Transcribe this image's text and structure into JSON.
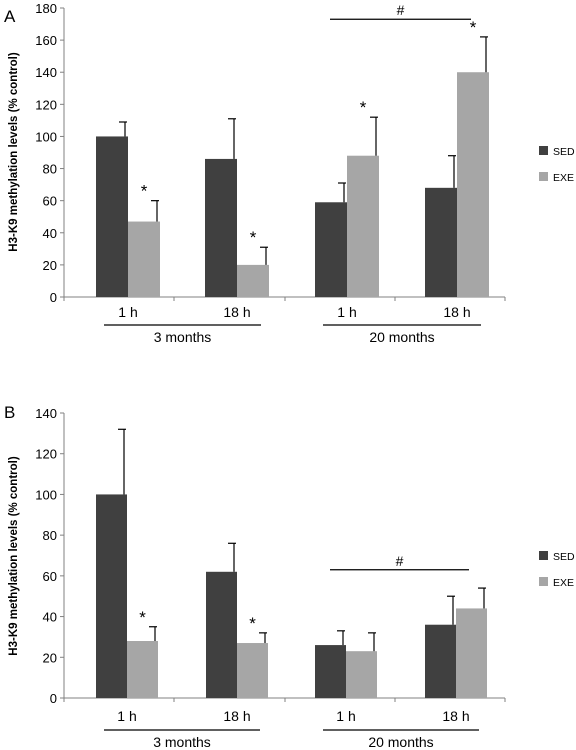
{
  "colors": {
    "sed": "#404040",
    "exe": "#a6a6a6",
    "axis": "#808080"
  },
  "chart_data": [
    {
      "type": "bar",
      "panel_label": "A",
      "ylabel": "H3-K9 methylation levels (% control)",
      "ylim": [
        0,
        180
      ],
      "yticks": [
        "0",
        "20",
        "40",
        "60",
        "80",
        "100",
        "120",
        "140",
        "160",
        "180"
      ],
      "categories": [
        "1 h",
        "18 h",
        "1 h",
        "18 h"
      ],
      "groups": [
        {
          "label": "3 months",
          "span": [
            0,
            1
          ]
        },
        {
          "label": "20 months",
          "span": [
            2,
            3
          ]
        }
      ],
      "series": [
        {
          "name": "SED",
          "values": [
            100,
            86,
            59,
            68
          ],
          "errors": [
            9,
            25,
            12,
            20
          ]
        },
        {
          "name": "EXE",
          "values": [
            47,
            20,
            88,
            140
          ],
          "errors": [
            13,
            11,
            24,
            22
          ]
        }
      ],
      "significance": [
        {
          "series": 1,
          "index": 0,
          "mark": "*"
        },
        {
          "series": 1,
          "index": 1,
          "mark": "*"
        },
        {
          "series": 1,
          "index": 2,
          "mark": "*"
        },
        {
          "series": 1,
          "index": 3,
          "mark": "*"
        }
      ],
      "bracket": {
        "span": [
          2,
          3
        ],
        "level": 173,
        "mark": "#"
      },
      "legend": "right"
    },
    {
      "type": "bar",
      "panel_label": "B",
      "ylabel": "H3-K9 methylation levels (% control)",
      "ylim": [
        0,
        140
      ],
      "yticks": [
        "0",
        "20",
        "40",
        "60",
        "80",
        "100",
        "120",
        "140"
      ],
      "categories": [
        "1 h",
        "18 h",
        "1 h",
        "18 h"
      ],
      "groups": [
        {
          "label": "3 months",
          "span": [
            0,
            1
          ]
        },
        {
          "label": "20 months",
          "span": [
            2,
            3
          ]
        }
      ],
      "series": [
        {
          "name": "SED",
          "values": [
            100,
            62,
            26,
            36
          ],
          "errors": [
            32,
            14,
            7,
            14
          ]
        },
        {
          "name": "EXE",
          "values": [
            28,
            27,
            23,
            44
          ],
          "errors": [
            7,
            5,
            9,
            10
          ]
        }
      ],
      "significance": [
        {
          "series": 1,
          "index": 0,
          "mark": "*"
        },
        {
          "series": 1,
          "index": 1,
          "mark": "*"
        }
      ],
      "bracket": {
        "span": [
          2,
          3
        ],
        "level": 63,
        "mark": "#"
      },
      "legend": "right"
    }
  ]
}
